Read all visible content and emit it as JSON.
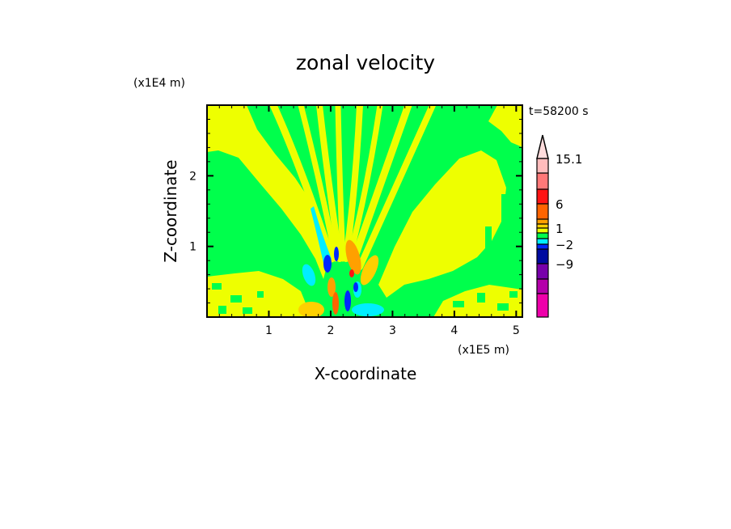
{
  "chart_data": {
    "type": "heatmap",
    "title": "zonal velocity",
    "xlabel": "X-coordinate",
    "ylabel": "Z-coordinate",
    "x_unit_label": "(x1E5 m)",
    "y_unit_label": "(x1E4 m)",
    "time_label": "t=58200 s",
    "xlim": [
      0,
      5.1
    ],
    "ylim": [
      0,
      3.0
    ],
    "xticks": [
      1,
      2,
      3,
      4,
      5
    ],
    "xtick_labels": [
      "1",
      "2",
      "3",
      "4",
      "5"
    ],
    "yticks": [
      1,
      2
    ],
    "ytick_labels": [
      "1",
      "2"
    ],
    "colorbar": {
      "labels": [
        {
          "text": "15.1",
          "level_index": 1
        },
        {
          "text": "6",
          "level_index": 4
        },
        {
          "text": "1",
          "level_index": 7
        },
        {
          "text": "-2",
          "level_index": 10
        },
        {
          "text": "-9",
          "level_index": 12
        }
      ],
      "colors_top_to_bottom": [
        "#ffdcdc",
        "#ffbcbc",
        "#ff7878",
        "#ff1414",
        "#ff6400",
        "#ffa000",
        "#ffd000",
        "#eeff00",
        "#00ff4c",
        "#00eeff",
        "#0028ff",
        "#000aa0",
        "#7800aa",
        "#b400aa",
        "#ee00aa"
      ]
    }
  }
}
